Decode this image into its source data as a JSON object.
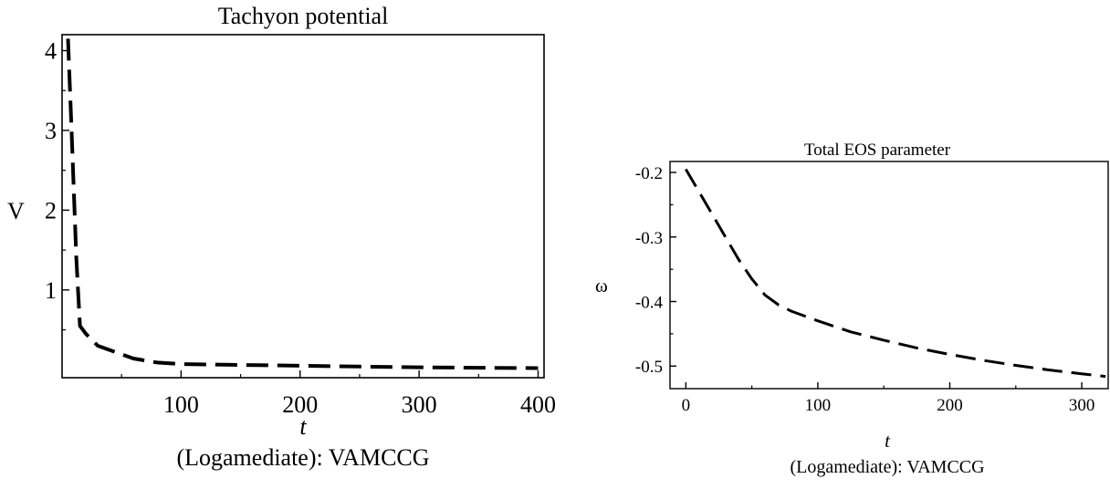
{
  "chart_data": [
    {
      "type": "line",
      "title": "Tachyon potential",
      "xlabel": "t",
      "ylabel": "V",
      "caption": "(Logamediate): VAMCCG",
      "xlim": [
        0,
        405
      ],
      "ylim": [
        -0.1,
        4.2
      ],
      "xticks": [
        100,
        200,
        300,
        400
      ],
      "xtick_labels": [
        "100",
        "200",
        "300",
        "400"
      ],
      "yticks": [
        1,
        2,
        3,
        4
      ],
      "ytick_labels": [
        "1",
        "2",
        "3",
        "4"
      ],
      "series": [
        {
          "line_style": "dashed",
          "color": "#000000",
          "x": [
            5,
            8,
            12,
            15,
            20,
            30,
            45,
            60,
            80,
            100,
            150,
            200,
            250,
            300,
            350,
            400
          ],
          "y": [
            4.15,
            3.0,
            1.4,
            0.55,
            0.45,
            0.3,
            0.22,
            0.14,
            0.09,
            0.07,
            0.06,
            0.05,
            0.04,
            0.03,
            0.025,
            0.02
          ]
        }
      ]
    },
    {
      "type": "line",
      "title": "Total EOS parameter",
      "xlabel": "t",
      "ylabel": "ω",
      "caption": "(Logamediate): VAMCCG",
      "xlim": [
        -12,
        320
      ],
      "ylim": [
        -0.535,
        -0.183
      ],
      "xticks": [
        0,
        100,
        200,
        300
      ],
      "xtick_labels": [
        "0",
        "100",
        "200",
        "300"
      ],
      "yticks": [
        -0.2,
        -0.3,
        -0.4,
        -0.5
      ],
      "ytick_labels": [
        "-0.2",
        "-0.3",
        "-0.4",
        "-0.5"
      ],
      "series": [
        {
          "line_style": "dashed",
          "color": "#000000",
          "x": [
            0,
            10,
            20,
            30,
            40,
            50,
            60,
            70,
            80,
            100,
            125,
            150,
            175,
            200,
            225,
            250,
            275,
            300,
            318
          ],
          "y": [
            -0.195,
            -0.23,
            -0.265,
            -0.3,
            -0.335,
            -0.365,
            -0.39,
            -0.405,
            -0.415,
            -0.43,
            -0.447,
            -0.46,
            -0.472,
            -0.482,
            -0.491,
            -0.499,
            -0.506,
            -0.512,
            -0.516
          ]
        }
      ]
    }
  ]
}
